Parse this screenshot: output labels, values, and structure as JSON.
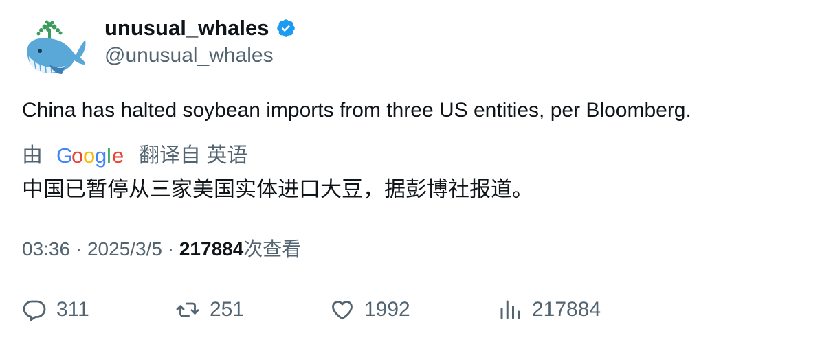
{
  "tweet": {
    "display_name": "unusual_whales",
    "handle": "@unusual_whales",
    "text": "China has halted soybean imports from three US entities, per Bloomberg.",
    "verified_icon": "verified-badge-icon",
    "brand_color": "#1d9bf0"
  },
  "translation": {
    "prefix": "由",
    "provider": "Google",
    "suffix": "翻译自 英语",
    "text": "中国已暂停从三家美国实体进口大豆，据彭博社报道。"
  },
  "meta": {
    "time": "03:36",
    "separator": "·",
    "date": "2025/3/5",
    "views": "217884",
    "views_label": "次查看"
  },
  "actions": {
    "replies": "311",
    "retweets": "251",
    "likes": "1992",
    "views": "217884"
  }
}
